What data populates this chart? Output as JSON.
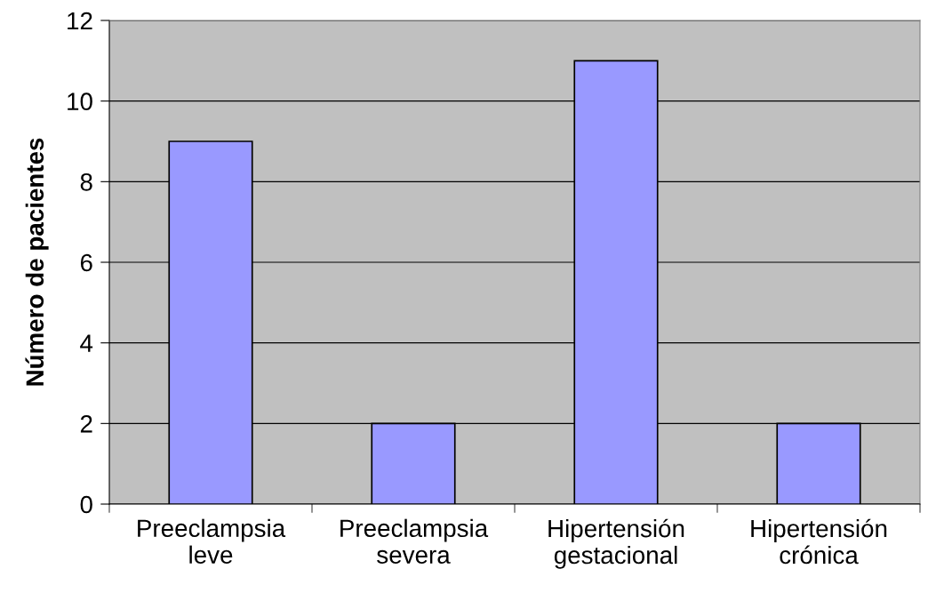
{
  "chart_data": {
    "type": "bar",
    "ylabel": "Número de pacientes",
    "categories": [
      "Preeclampsia\nleve",
      "Preeclampsia\nsevera",
      "Hipertensión\ngestacional",
      "Hipertensión\ncrónica"
    ],
    "values": [
      9,
      2,
      11,
      2
    ],
    "color": "#9999ff",
    "ylim": [
      0,
      12
    ],
    "yticks": [
      0,
      2,
      4,
      6,
      8,
      10,
      12
    ],
    "grid": "y",
    "legend": false
  }
}
